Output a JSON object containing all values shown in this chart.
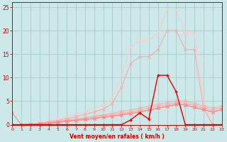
{
  "x": [
    0,
    1,
    2,
    3,
    4,
    5,
    6,
    7,
    8,
    9,
    10,
    11,
    12,
    13,
    14,
    15,
    16,
    17,
    18,
    19,
    20,
    21,
    22,
    23
  ],
  "line_linear1": [
    0,
    0,
    0.1,
    0.3,
    0.5,
    0.7,
    1.0,
    1.2,
    1.5,
    1.8,
    2.1,
    2.4,
    2.8,
    3.1,
    3.5,
    3.9,
    4.3,
    4.7,
    5.1,
    5.0,
    4.5,
    4.0,
    3.5,
    4.0
  ],
  "line_linear2": [
    0,
    0,
    0.1,
    0.2,
    0.4,
    0.6,
    0.8,
    1.0,
    1.3,
    1.6,
    1.9,
    2.1,
    2.4,
    2.7,
    3.1,
    3.5,
    3.9,
    4.3,
    4.7,
    4.6,
    4.1,
    3.6,
    3.1,
    3.6
  ],
  "line_linear3": [
    0,
    0,
    0.1,
    0.2,
    0.3,
    0.5,
    0.7,
    0.9,
    1.1,
    1.3,
    1.6,
    1.8,
    2.1,
    2.4,
    2.7,
    3.1,
    3.5,
    3.9,
    4.3,
    4.2,
    3.7,
    3.2,
    2.7,
    3.2
  ],
  "line_linear4": [
    2.5,
    0,
    0.1,
    0.2,
    0.3,
    0.5,
    0.7,
    0.9,
    1.1,
    1.3,
    1.6,
    1.8,
    2.1,
    2.4,
    2.7,
    3.1,
    3.5,
    3.9,
    4.3,
    4.2,
    3.7,
    3.2,
    2.7,
    3.2
  ],
  "line_peak_light": [
    0,
    0,
    0.2,
    0.5,
    0.8,
    1.2,
    1.7,
    2.2,
    2.8,
    3.4,
    4.2,
    5.8,
    10.5,
    16.5,
    18.0,
    18.0,
    19.5,
    24.5,
    24.5,
    19.5,
    19.5,
    4.5,
    0,
    0
  ],
  "line_peak_medium": [
    0,
    0,
    0.1,
    0.3,
    0.6,
    0.9,
    1.3,
    1.7,
    2.2,
    2.7,
    3.3,
    4.5,
    8.0,
    13.0,
    14.5,
    14.5,
    16.0,
    20.0,
    20.0,
    16.0,
    16.0,
    3.5,
    0,
    0
  ],
  "line_dark_red": [
    0,
    0,
    0,
    0,
    0,
    0,
    0,
    0,
    0,
    0,
    0,
    0,
    0,
    1.0,
    2.5,
    1.2,
    10.5,
    10.5,
    7.0,
    0,
    0,
    0,
    0,
    0
  ],
  "ylim": [
    0,
    26
  ],
  "xlim": [
    0,
    23
  ],
  "yticks": [
    0,
    5,
    10,
    15,
    20,
    25
  ],
  "xticks": [
    0,
    1,
    2,
    3,
    4,
    5,
    6,
    7,
    8,
    9,
    10,
    11,
    12,
    13,
    14,
    15,
    16,
    17,
    18,
    19,
    20,
    21,
    22,
    23
  ],
  "xlabel": "Vent moyen/en rafales ( km/h )",
  "bg_color": "#cce8e8",
  "grid_color": "#aacccc",
  "color_lightest": "#ffcccc",
  "color_light": "#ffaaaa",
  "color_medium_light": "#ff8888",
  "color_medium": "#ff6666",
  "color_dark": "#dd0000"
}
